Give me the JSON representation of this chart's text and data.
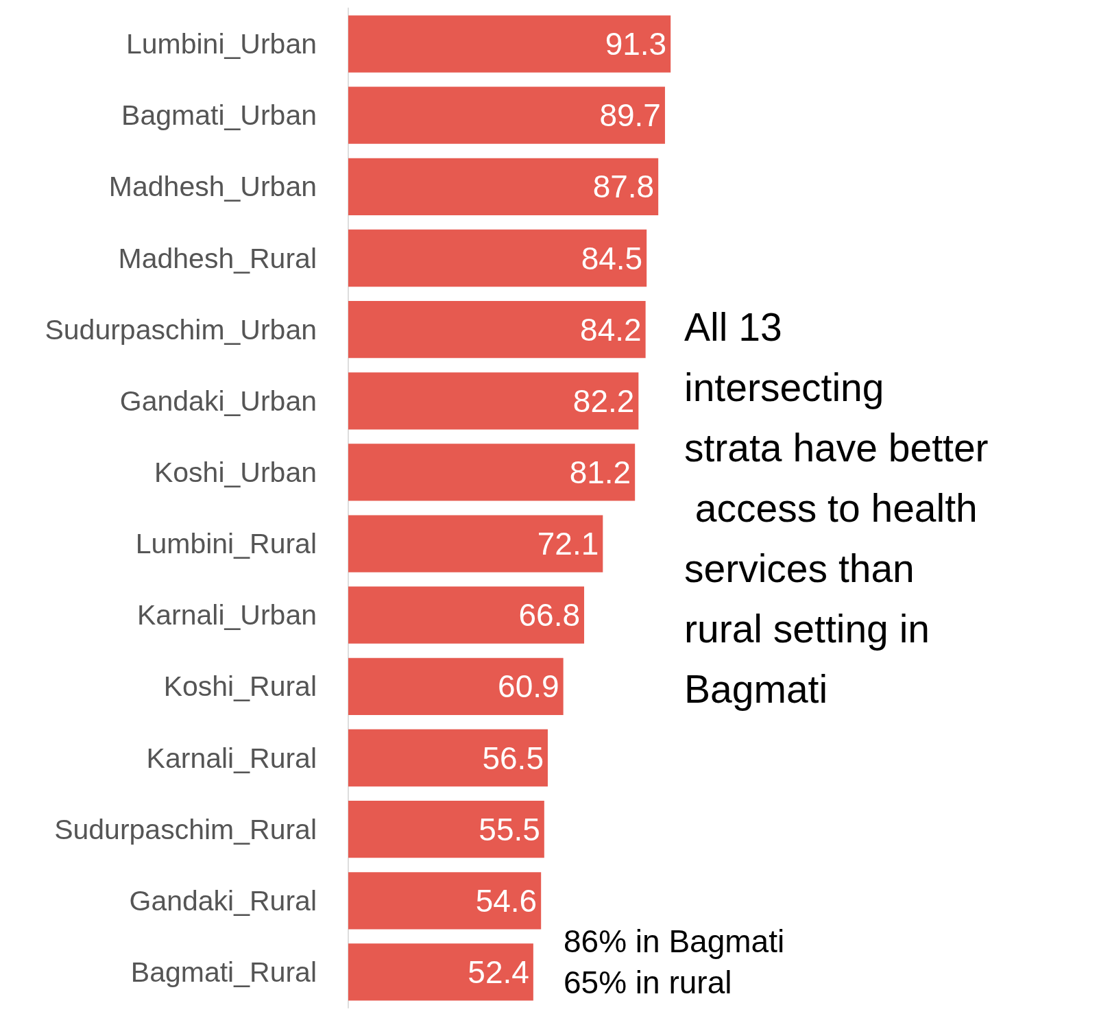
{
  "chart_data": {
    "type": "bar",
    "orientation": "horizontal",
    "categories": [
      "Lumbini_Urban",
      "Bagmati_Urban",
      "Madhesh_Urban",
      "Madhesh_Rural",
      "Sudurpaschim_Urban",
      "Gandaki_Urban",
      "Koshi_Urban",
      "Lumbini_Rural",
      "Karnali_Urban",
      "Koshi_Rural",
      "Karnali_Rural",
      "Sudurpaschim_Rural",
      "Gandaki_Rural",
      "Bagmati_Rural"
    ],
    "values": [
      91.3,
      89.7,
      87.8,
      84.5,
      84.2,
      82.2,
      81.2,
      72.1,
      66.8,
      60.9,
      56.5,
      55.5,
      54.6,
      52.4
    ],
    "color": "#e65a50",
    "data_labels": true,
    "annotations": [
      "All 13 intersecting strata have better access to health services than rural setting in Bagmati",
      "86% in Bagmati 65% in rural"
    ]
  }
}
